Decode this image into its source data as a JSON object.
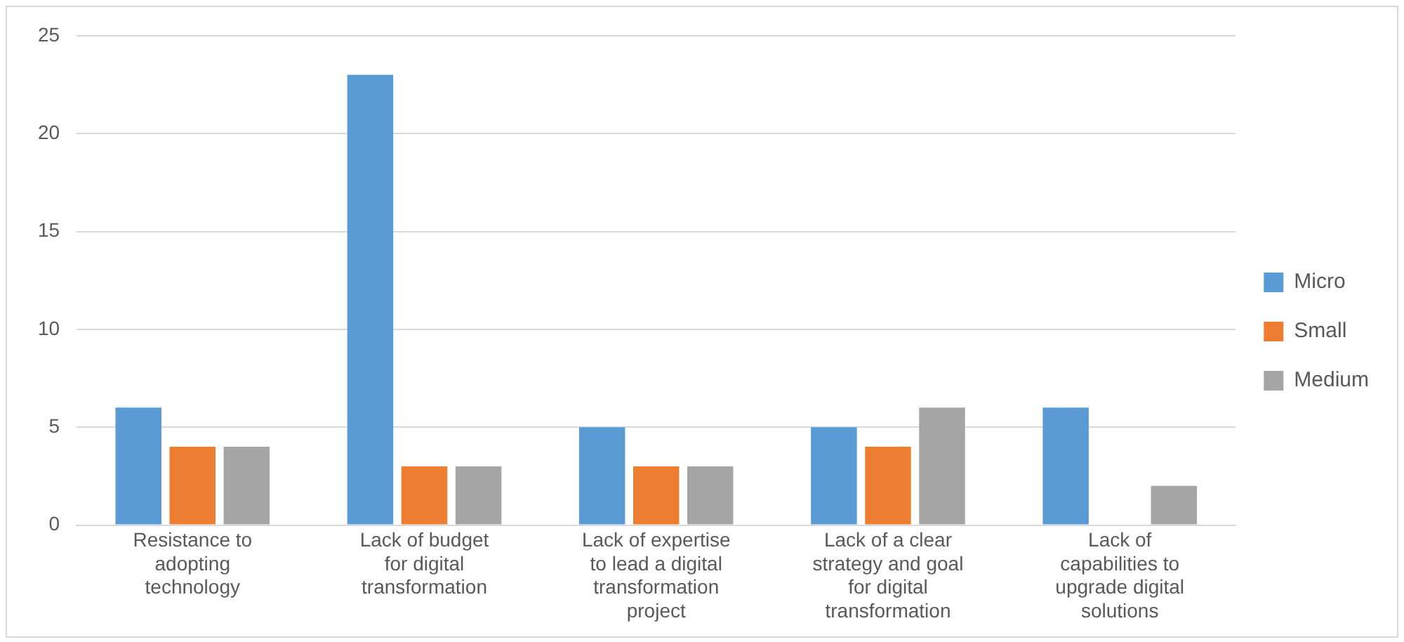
{
  "chart_data": {
    "type": "bar",
    "categories": [
      "Resistance to adopting technology",
      "Lack of budget for digital transformation",
      "Lack of expertise to lead a digital transformation project",
      "Lack of a clear strategy and goal for digital transformation",
      "Lack of capabilities to upgrade digital solutions"
    ],
    "series": [
      {
        "name": "Micro",
        "color": "#5b9bd5",
        "values": [
          6,
          23,
          5,
          5,
          6
        ]
      },
      {
        "name": "Small",
        "color": "#ed7d31",
        "values": [
          4,
          3,
          3,
          4,
          0
        ]
      },
      {
        "name": "Medium",
        "color": "#a5a5a5",
        "values": [
          4,
          3,
          3,
          6,
          2
        ]
      }
    ],
    "ylim": [
      0,
      25
    ],
    "yticks": [
      0,
      5,
      10,
      15,
      20,
      25
    ],
    "grid": "y",
    "legend": "right"
  }
}
